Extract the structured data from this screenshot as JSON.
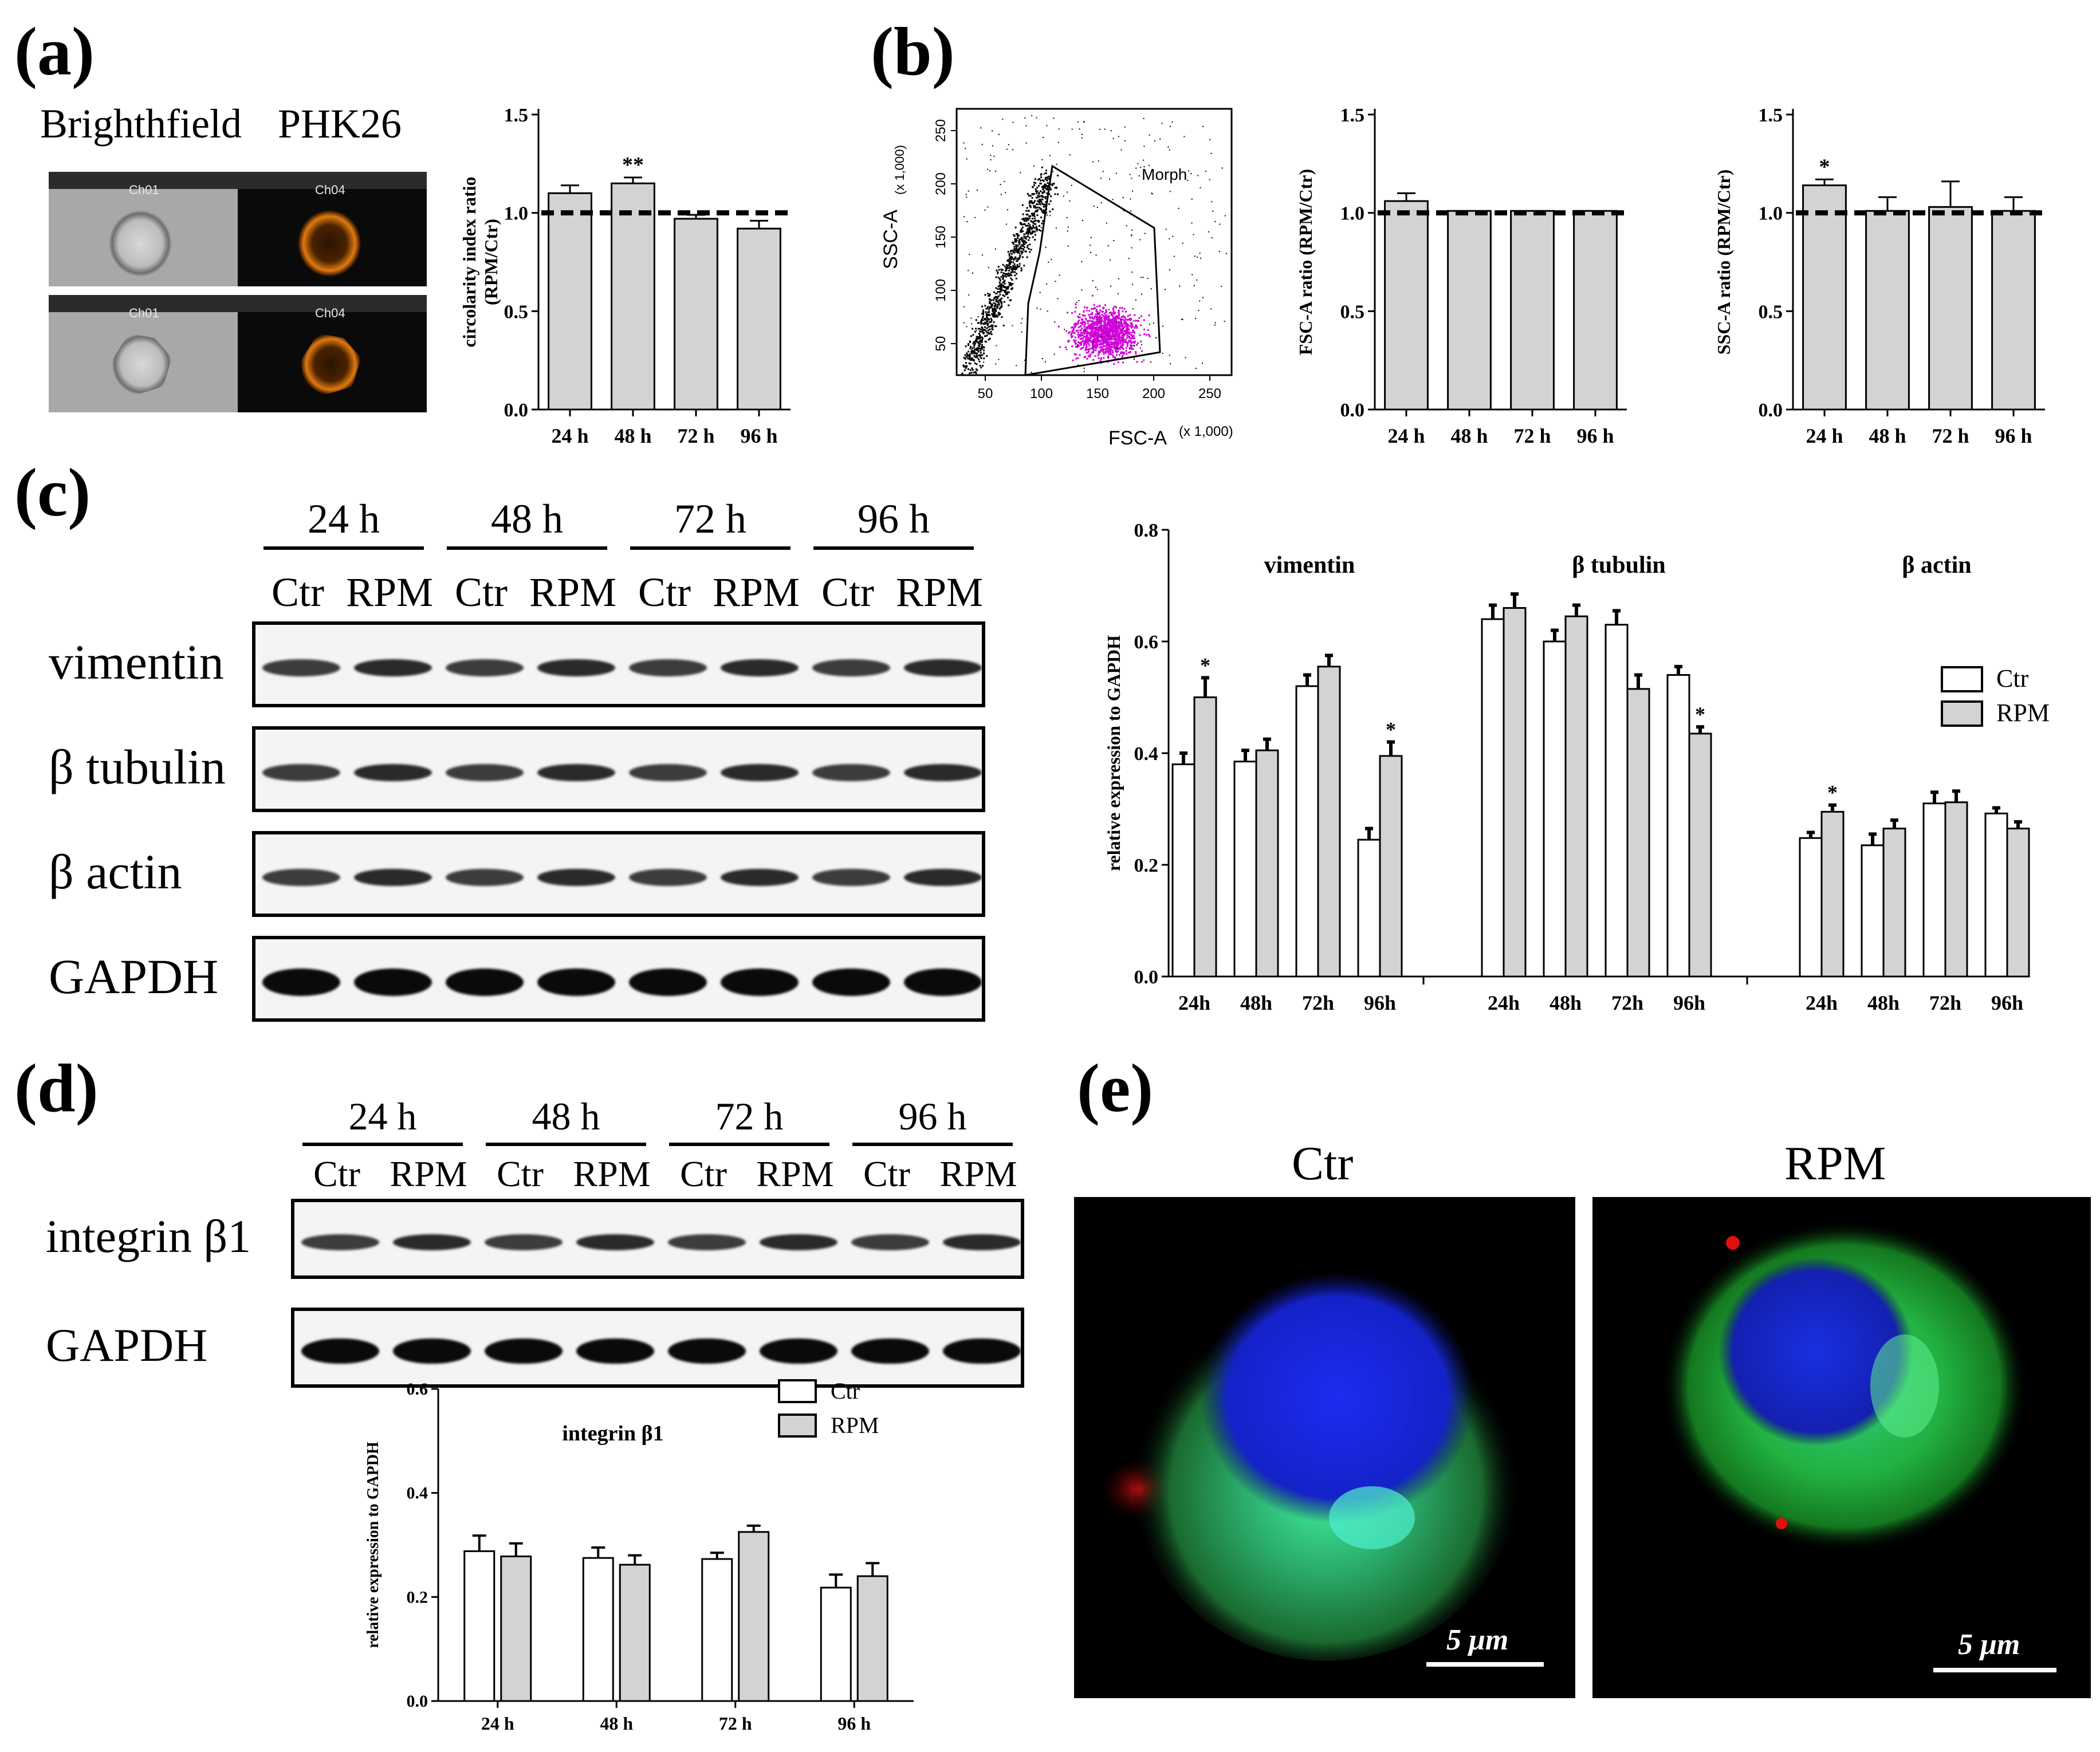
{
  "figure": {
    "panel_labels": [
      "(a)",
      "(b)",
      "(c)",
      "(d)",
      "(e)"
    ],
    "colors": {
      "ctr": "#ffffff",
      "rpm": "#d3d3d3",
      "morph_gate": "#d000d8",
      "dapi": "#1020d8",
      "tubulin": "#28d040",
      "integrin": "#e01010"
    }
  },
  "panel_a": {
    "headers": {
      "left": "Brighthfield",
      "right": "PHK26"
    },
    "channel_tags": {
      "bf": "Ch01",
      "phk": "Ch04"
    }
  },
  "panel_b": {
    "scatter": {
      "xlabel": "FSC-A",
      "ylabel": "SSC-A",
      "x_scale": "(x 1,000)",
      "y_scale": "(x 1,000)",
      "gate_label": "Morph",
      "x_ticks": [
        "50",
        "100",
        "150",
        "200",
        "250"
      ],
      "y_ticks": [
        "50",
        "100",
        "150",
        "200",
        "250"
      ]
    }
  },
  "panel_c": {
    "times": [
      "24 h",
      "48 h",
      "72 h",
      "96 h"
    ],
    "conditions": [
      "Ctr",
      "RPM",
      "Ctr",
      "RPM",
      "Ctr",
      "RPM",
      "Ctr",
      "RPM"
    ],
    "blot_rows": [
      "vimentin",
      "β tubulin",
      "β actin",
      "GAPDH"
    ]
  },
  "panel_d": {
    "times": [
      "24 h",
      "48 h",
      "72 h",
      "96 h"
    ],
    "conditions": [
      "Ctr",
      "RPM",
      "Ctr",
      "RPM",
      "Ctr",
      "RPM",
      "Ctr",
      "RPM"
    ],
    "blot_rows": [
      "integrin β1",
      "GAPDH"
    ]
  },
  "panel_e": {
    "titles": [
      "Ctr",
      "RPM"
    ],
    "scale_bar_label": "5 μm"
  },
  "chart_data": [
    {
      "id": "a-circularity",
      "type": "bar",
      "categories": [
        "24 h",
        "48 h",
        "72 h",
        "96 h"
      ],
      "values": [
        1.1,
        1.15,
        0.97,
        0.92
      ],
      "errors": [
        0.04,
        0.03,
        0.02,
        0.04
      ],
      "significance": [
        "",
        "**",
        "",
        ""
      ],
      "reference_line": 1.0,
      "ylabel": "circolarity index ratio (RPM/Ctr)",
      "ylim": [
        0,
        1.5
      ],
      "yticks": [
        "0.0",
        "0.5",
        "1.0",
        "1.5"
      ]
    },
    {
      "id": "b-fsc",
      "type": "bar",
      "categories": [
        "24 h",
        "48 h",
        "72 h",
        "96 h"
      ],
      "values": [
        1.06,
        1.01,
        1.01,
        1.01
      ],
      "errors": [
        0.04,
        0.0,
        0.0,
        0.0
      ],
      "significance": [
        "",
        "",
        "",
        ""
      ],
      "reference_line": 1.0,
      "ylabel": "FSC-A ratio (RPM/Ctr)",
      "ylim": [
        0,
        1.5
      ],
      "yticks": [
        "0.0",
        "0.5",
        "1.0",
        "1.5"
      ]
    },
    {
      "id": "b-ssc",
      "type": "bar",
      "categories": [
        "24 h",
        "48 h",
        "72 h",
        "96 h"
      ],
      "values": [
        1.14,
        1.01,
        1.03,
        1.01
      ],
      "errors": [
        0.03,
        0.07,
        0.13,
        0.07
      ],
      "significance": [
        "*",
        "",
        "",
        ""
      ],
      "reference_line": 1.0,
      "ylabel": "SSC-A ratio (RPM/Ctr)",
      "ylim": [
        0,
        1.5
      ],
      "yticks": [
        "0.0",
        "0.5",
        "1.0",
        "1.5"
      ]
    },
    {
      "id": "c-expression",
      "type": "bar",
      "ylabel": "relative expression to GAPDH",
      "ylim": [
        0,
        0.8
      ],
      "yticks": [
        "0.0",
        "0.2",
        "0.4",
        "0.6",
        "0.8"
      ],
      "legend": [
        "Ctr",
        "RPM"
      ],
      "groups": [
        {
          "name": "vimentin",
          "categories": [
            "24h",
            "48h",
            "72h",
            "96h"
          ],
          "ctr": [
            0.38,
            0.385,
            0.52,
            0.245
          ],
          "rpm": [
            0.5,
            0.405,
            0.555,
            0.395
          ],
          "ctr_err": [
            0.02,
            0.02,
            0.02,
            0.02
          ],
          "rpm_err": [
            0.035,
            0.02,
            0.02,
            0.025
          ],
          "significance": [
            "*",
            "",
            "",
            "*"
          ]
        },
        {
          "name": "β tubulin",
          "categories": [
            "24h",
            "48h",
            "72h",
            "96h"
          ],
          "ctr": [
            0.64,
            0.6,
            0.63,
            0.54
          ],
          "rpm": [
            0.66,
            0.645,
            0.515,
            0.435
          ],
          "ctr_err": [
            0.025,
            0.02,
            0.025,
            0.015
          ],
          "rpm_err": [
            0.025,
            0.02,
            0.025,
            0.012
          ],
          "significance": [
            "",
            "",
            "",
            "*"
          ]
        },
        {
          "name": "β actin",
          "categories": [
            "24h",
            "48h",
            "72h",
            "96h"
          ],
          "ctr": [
            0.248,
            0.235,
            0.31,
            0.292
          ],
          "rpm": [
            0.295,
            0.265,
            0.312,
            0.265
          ],
          "ctr_err": [
            0.01,
            0.02,
            0.02,
            0.01
          ],
          "rpm_err": [
            0.012,
            0.015,
            0.02,
            0.012
          ],
          "significance": [
            "*",
            "",
            "",
            ""
          ]
        }
      ]
    },
    {
      "id": "d-integrin",
      "type": "bar",
      "title": "integrin β1",
      "categories": [
        "24 h",
        "48 h",
        "72 h",
        "96 h"
      ],
      "legend": [
        "Ctr",
        "RPM"
      ],
      "ctr": [
        0.288,
        0.275,
        0.273,
        0.218
      ],
      "rpm": [
        0.278,
        0.262,
        0.325,
        0.24
      ],
      "ctr_err": [
        0.03,
        0.02,
        0.012,
        0.025
      ],
      "rpm_err": [
        0.025,
        0.018,
        0.012,
        0.025
      ],
      "ylabel": "relative expression to GAPDH",
      "ylim": [
        0,
        0.6
      ],
      "yticks": [
        "0.0",
        "0.2",
        "0.4",
        "0.6"
      ]
    }
  ]
}
